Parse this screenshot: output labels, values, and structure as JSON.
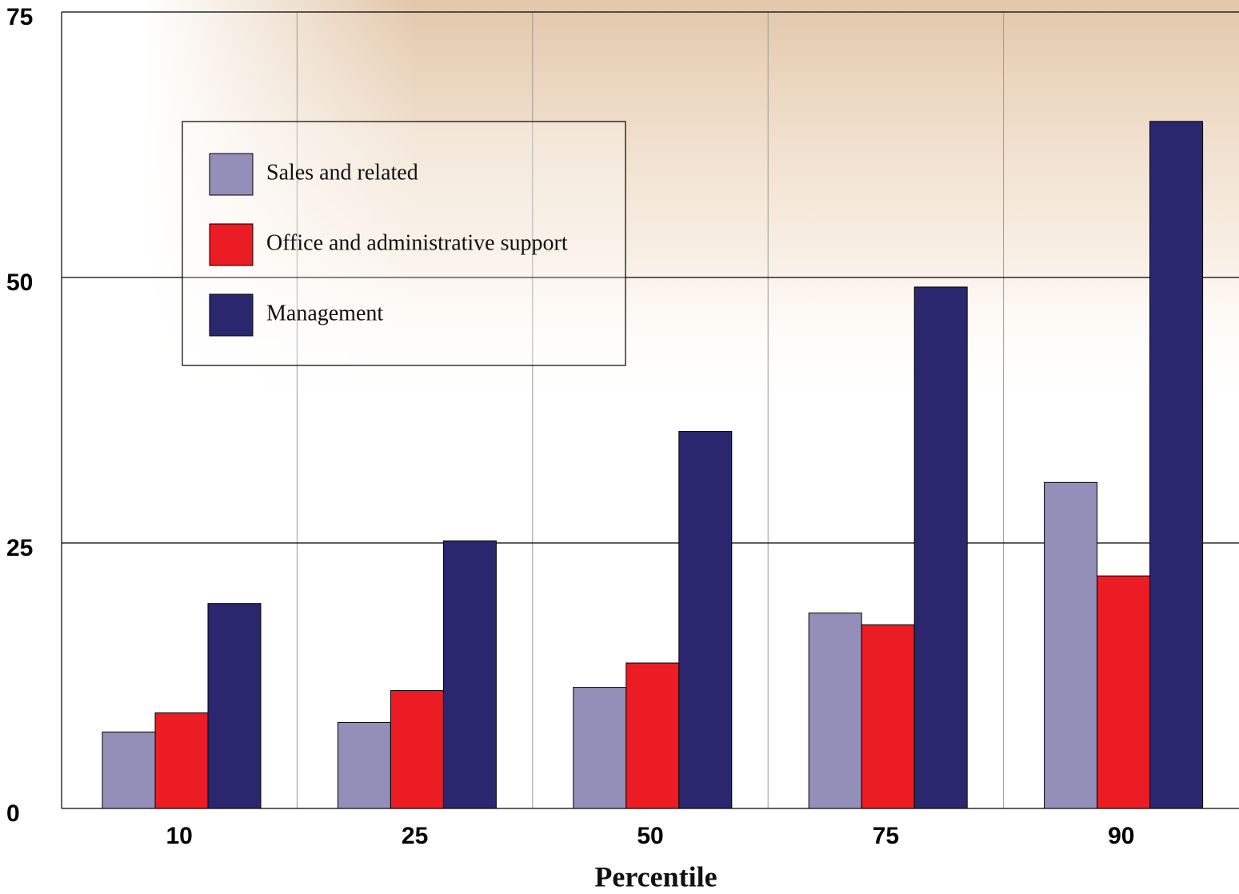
{
  "chart_data": {
    "type": "bar",
    "x_label": "Percentile",
    "categories": [
      "10",
      "25",
      "50",
      "75",
      "90"
    ],
    "series": [
      {
        "name": "Sales and related",
        "color": "#948fb8",
        "values": [
          7.2,
          8.1,
          11.4,
          18.4,
          30.7
        ]
      },
      {
        "name": "Office and administrative support",
        "color": "#ec1c24",
        "values": [
          9.0,
          11.1,
          13.7,
          17.3,
          21.9
        ]
      },
      {
        "name": "Management",
        "color": "#2b276e",
        "values": [
          19.3,
          25.2,
          35.5,
          49.1,
          64.7
        ]
      }
    ],
    "ylim": [
      0,
      75
    ],
    "yticks": [
      0,
      25,
      50,
      75
    ],
    "grid": true,
    "legend": "upper left"
  }
}
